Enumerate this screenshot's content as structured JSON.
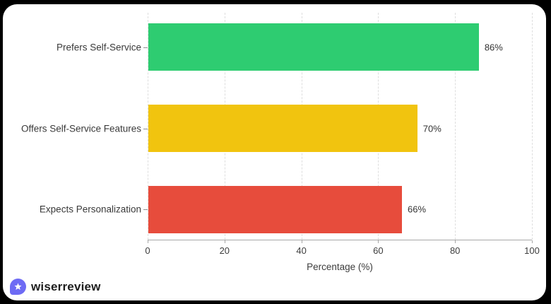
{
  "chart_data": {
    "type": "bar",
    "orientation": "horizontal",
    "categories": [
      "Prefers Self-Service",
      "Offers Self-Service Features",
      "Expects Personalization"
    ],
    "values": [
      86,
      70,
      66
    ],
    "value_labels": [
      "86%",
      "70%",
      "66%"
    ],
    "bar_colors": [
      "#2ecc71",
      "#f1c40f",
      "#e74c3c"
    ],
    "title": "",
    "xlabel": "Percentage (%)",
    "ylabel": "",
    "xlim": [
      0,
      100
    ],
    "xticks": [
      0,
      20,
      40,
      60,
      80,
      100
    ],
    "xtick_labels": [
      "0",
      "20",
      "40",
      "60",
      "80",
      "100"
    ],
    "grid": "vertical-dashed",
    "legend": "none"
  },
  "footer": {
    "brand": "wiserreview",
    "badge_color": "#6e6bf4",
    "badge_icon": "star"
  },
  "colors": {
    "page_background": "#000000",
    "card_background": "#ffffff",
    "axis": "#a8a8a8",
    "gridline": "#dedede",
    "label_text": "#3a3a3a"
  }
}
